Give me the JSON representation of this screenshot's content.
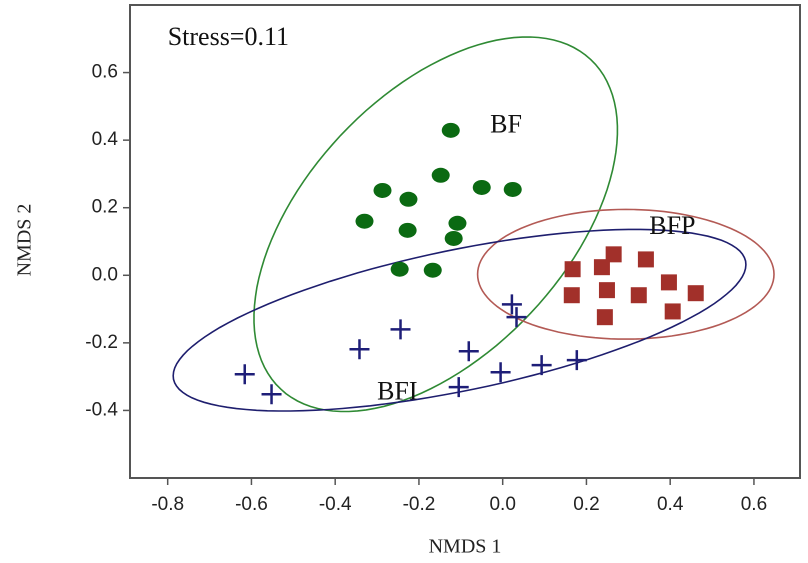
{
  "chart_data": {
    "type": "scatter",
    "xlabel": "NMDS 1",
    "ylabel": "NMDS 2",
    "xlim": [
      -0.89,
      0.71
    ],
    "ylim": [
      -0.6,
      0.8
    ],
    "xticks": [
      -0.8,
      -0.6,
      -0.4,
      -0.2,
      {
        "value": 0,
        "label": "0.0"
      },
      0.2,
      0.4,
      0.6
    ],
    "yticks": [
      -0.4,
      -0.2,
      {
        "value": 0,
        "label": "0.0"
      },
      0.2,
      0.4,
      0.6
    ],
    "annotations": [
      {
        "text": "Stress=0.11",
        "x": -0.8,
        "y": 0.7
      }
    ],
    "series": [
      {
        "name": "BF",
        "color": "#0b6a12",
        "marker": "circle",
        "ellipse_color": "#2f8a34",
        "label_pos": [
          -0.03,
          0.44
        ],
        "x": [
          -0.124,
          -0.287,
          -0.225,
          -0.148,
          -0.05,
          0.024,
          -0.33,
          -0.227,
          -0.108,
          -0.117,
          -0.246,
          -0.167
        ],
        "y": [
          0.429,
          0.251,
          0.225,
          0.296,
          0.26,
          0.254,
          0.16,
          0.133,
          0.154,
          0.109,
          0.018,
          0.015
        ],
        "ellipse": {
          "center": [
            -0.16,
            0.151
          ],
          "axis1": [
            0.37,
            0.488
          ],
          "axis2": [
            0.227,
            -0.263
          ]
        }
      },
      {
        "name": "BFP",
        "color": "#a2302a",
        "marker": "square",
        "ellipse_color": "#b35a55",
        "label_pos": [
          0.35,
          0.14
        ],
        "x": [
          0.167,
          0.237,
          0.265,
          0.342,
          0.165,
          0.249,
          0.325,
          0.397,
          0.461,
          0.244,
          0.406
        ],
        "y": [
          0.018,
          0.024,
          0.062,
          0.047,
          -0.059,
          -0.044,
          -0.059,
          -0.021,
          -0.053,
          -0.124,
          -0.107
        ],
        "ellipse": {
          "center": [
            0.294,
            0.003
          ],
          "axis1": [
            0.354,
            0
          ],
          "axis2": [
            0,
            -0.192
          ]
        }
      },
      {
        "name": "BFI",
        "color": "#1e1e78",
        "marker": "plus",
        "ellipse_color": "#1e1e6e",
        "label_pos": [
          -0.3,
          -0.35
        ],
        "x": [
          -0.616,
          -0.552,
          -0.342,
          -0.244,
          -0.081,
          -0.105,
          -0.005,
          0.093,
          0.177,
          0.022,
          0.033
        ],
        "y": [
          -0.293,
          -0.352,
          -0.219,
          -0.16,
          -0.225,
          -0.331,
          -0.287,
          -0.266,
          -0.251,
          -0.086,
          -0.124
        ],
        "ellipse": {
          "center": [
            -0.103,
            -0.133
          ],
          "axis1": [
            0.683,
            0.175
          ],
          "axis2": [
            0.034,
            -0.204
          ]
        }
      }
    ]
  }
}
